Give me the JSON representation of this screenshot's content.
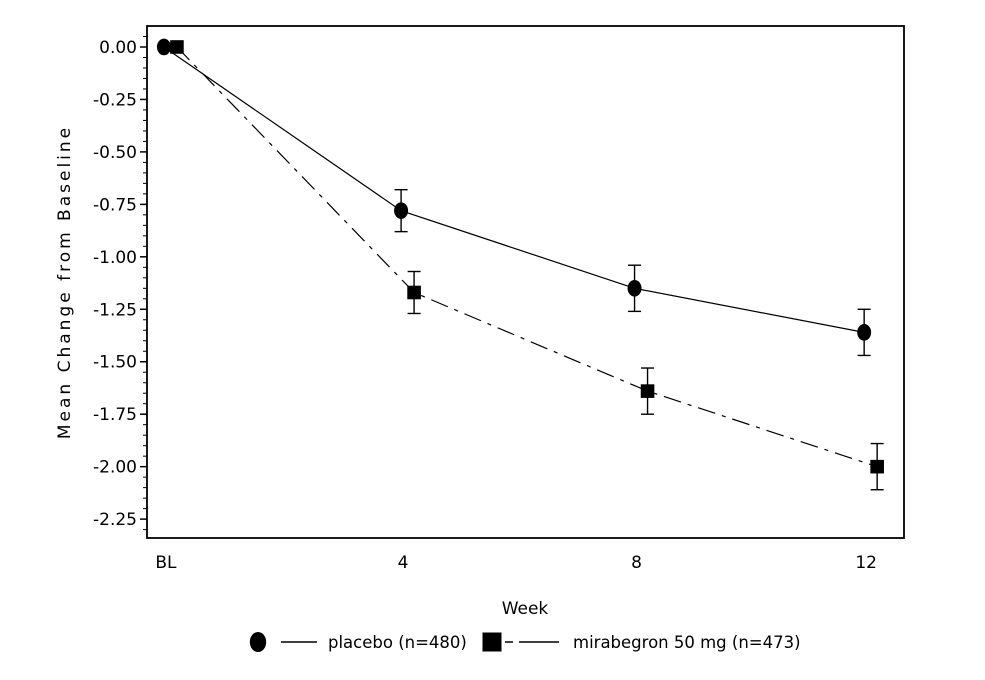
{
  "chart_data": {
    "type": "line",
    "title": "",
    "xlabel": "Week",
    "ylabel": "Mean Change from Baseline",
    "x_tick_labels": [
      "BL",
      "4",
      "8",
      "12"
    ],
    "x_values": [
      0,
      4,
      8,
      12
    ],
    "y_ticks": [
      0.0,
      -0.25,
      -0.5,
      -0.75,
      -1.0,
      -1.25,
      -1.5,
      -1.75,
      -2.0,
      -2.25
    ],
    "y_tick_labels": [
      "0.00",
      "-0.25",
      "-0.50",
      "-0.75",
      "-1.00",
      "-1.25",
      "-1.50",
      "-1.75",
      "-2.00",
      "-2.25"
    ],
    "ylim": [
      -2.34,
      0.1
    ],
    "minor_tick_step": 0.05,
    "grid": false,
    "legend_position": "bottom",
    "axis_color": "#000000",
    "background_color": "#ffffff",
    "series": [
      {
        "key": "placebo",
        "name": "placebo (n=480)",
        "marker": "circle",
        "line_style": "solid",
        "color": "#000000",
        "values": [
          0.0,
          -0.78,
          -1.15,
          -1.36
        ],
        "errors": [
          0,
          0.1,
          0.11,
          0.11
        ]
      },
      {
        "key": "mirabegron-50mg",
        "name": "mirabegron 50 mg (n=473)",
        "marker": "square",
        "line_style": "dash-dot",
        "color": "#000000",
        "values": [
          0.0,
          -1.17,
          -1.64,
          -2.0
        ],
        "errors": [
          0,
          0.1,
          0.11,
          0.11
        ]
      }
    ]
  }
}
